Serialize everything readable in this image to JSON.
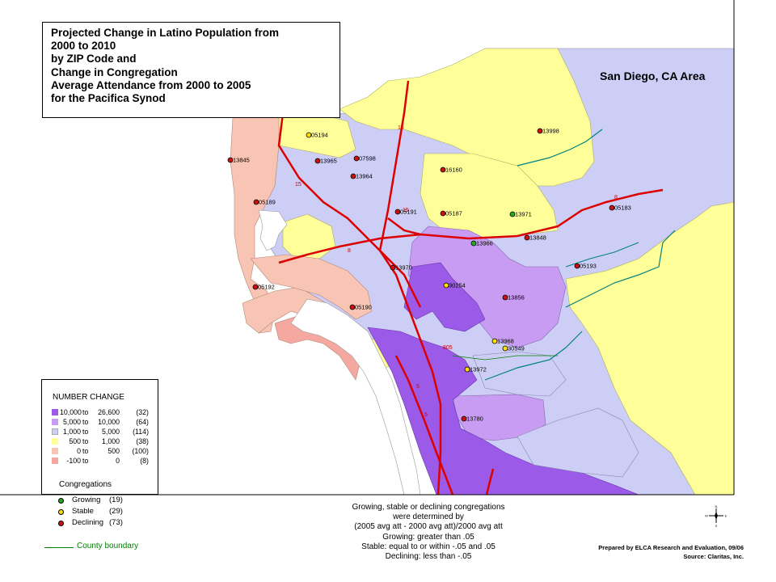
{
  "title": {
    "lines": [
      "Projected Change in Latino Population from",
      "2000 to 2010",
      "by ZIP Code and",
      "Change in Congregation",
      "Average Attendance from 2000 to 2005",
      "for the Pacifica Synod"
    ]
  },
  "area_label": "San Diego, CA Area",
  "legend": {
    "title": "NUMBER CHANGE",
    "rows": [
      {
        "low": "10,000",
        "to": "to",
        "high": "26,600",
        "count": "(32)",
        "color": "#9b5be8"
      },
      {
        "low": "5,000",
        "to": "to",
        "high": "10,000",
        "count": "(64)",
        "color": "#c89cf2"
      },
      {
        "low": "1,000",
        "to": "to",
        "high": "5,000",
        "count": "(114)",
        "color": "#cccef6"
      },
      {
        "low": "500",
        "to": "to",
        "high": "1,000",
        "count": "(38)",
        "color": "#ffff99"
      },
      {
        "low": "0",
        "to": "to",
        "high": "500",
        "count": "(100)",
        "color": "#f8c4b4"
      },
      {
        "low": "-100",
        "to": "to",
        "high": "0",
        "count": "(8)",
        "color": "#f4a8a0"
      }
    ]
  },
  "congregations": {
    "title": "Congregations",
    "rows": [
      {
        "label": "Growing",
        "count": "(19)",
        "color": "#22aa22"
      },
      {
        "label": "Stable",
        "count": "(29)",
        "color": "#ffdd00"
      },
      {
        "label": "Declining",
        "count": "(73)",
        "color": "#cc1111"
      }
    ]
  },
  "county_boundary_label": "County boundary",
  "note": [
    "Growing, stable or declining congregations",
    "were determined by",
    "(2005 avg att - 2000 avg att)/2000 avg att",
    "Growing: greater than .05",
    "Stable: equal to or within -.05 and .05",
    "Declining: less than -.05"
  ],
  "credit": [
    "Prepared by ELCA Research and Evaluation, 09/06",
    "Source: Claritas, Inc."
  ],
  "compass_letters": {
    "n": "N",
    "s": "S",
    "e": "E",
    "w": "W"
  },
  "highway_labels": [
    "15",
    "15",
    "8",
    "8",
    "805",
    "5",
    "5",
    "15"
  ],
  "markers": [
    {
      "zip": "05194",
      "status": "stable"
    },
    {
      "zip": "13998",
      "status": "declining"
    },
    {
      "zip": "13845",
      "status": "declining"
    },
    {
      "zip": "13965",
      "status": "declining"
    },
    {
      "zip": "07598",
      "status": "declining"
    },
    {
      "zip": "13964",
      "status": "declining"
    },
    {
      "zip": "16160",
      "status": "declining"
    },
    {
      "zip": "05189",
      "status": "declining"
    },
    {
      "zip": "05191",
      "status": "declining"
    },
    {
      "zip": "05187",
      "status": "declining"
    },
    {
      "zip": "13971",
      "status": "growing"
    },
    {
      "zip": "05183",
      "status": "declining"
    },
    {
      "zip": "13966",
      "status": "growing"
    },
    {
      "zip": "13848",
      "status": "declining"
    },
    {
      "zip": "13970",
      "status": "declining"
    },
    {
      "zip": "05193",
      "status": "declining"
    },
    {
      "zip": "30254",
      "status": "stable"
    },
    {
      "zip": "05192",
      "status": "declining"
    },
    {
      "zip": "13856",
      "status": "declining"
    },
    {
      "zip": "05190",
      "status": "declining"
    },
    {
      "zip": "13968",
      "status": "stable"
    },
    {
      "zip": "30549",
      "status": "stable"
    },
    {
      "zip": "13972",
      "status": "stable"
    },
    {
      "zip": "13780",
      "status": "declining"
    }
  ]
}
